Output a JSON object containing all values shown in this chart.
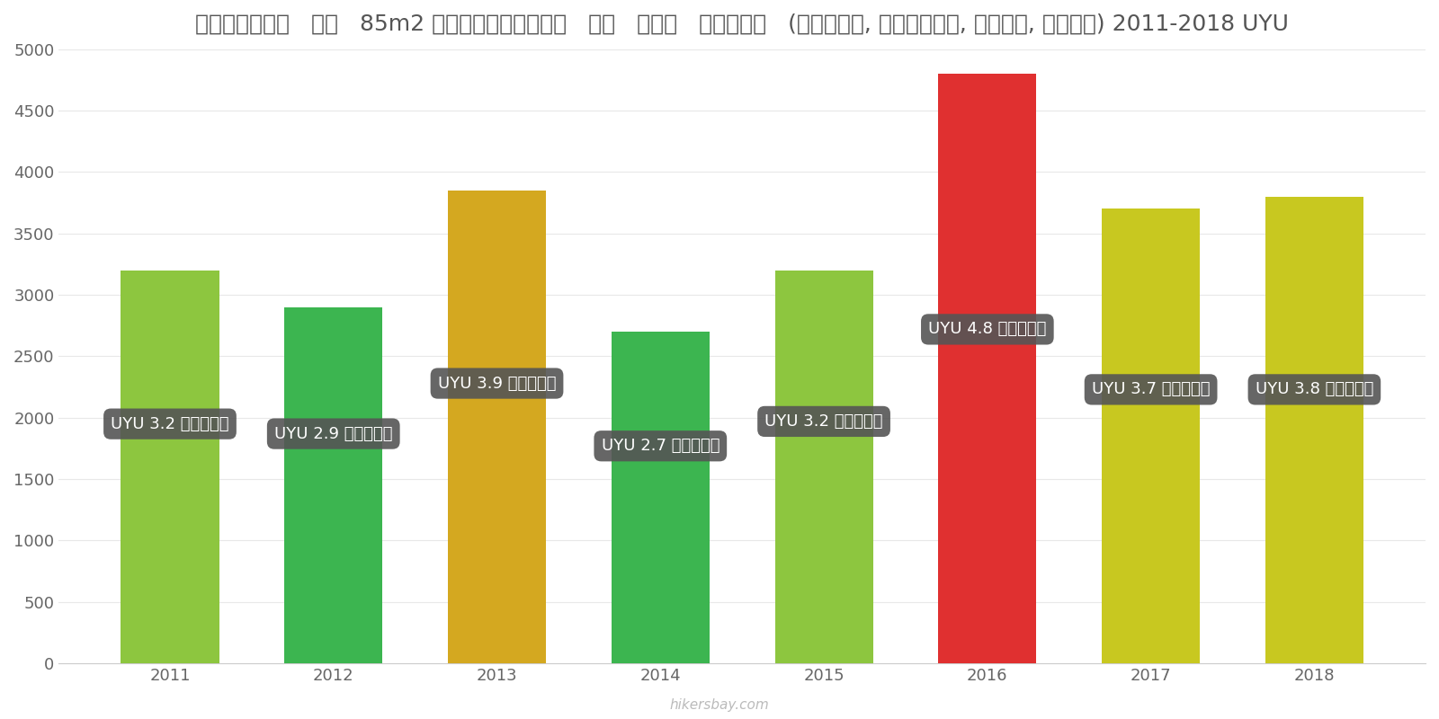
{
  "years": [
    2011,
    2012,
    2013,
    2014,
    2015,
    2016,
    2017,
    2018
  ],
  "values": [
    3200,
    2900,
    3850,
    2700,
    3200,
    4800,
    3700,
    3800
  ],
  "bar_colors": [
    "#8DC63F",
    "#3CB550",
    "#D4A820",
    "#3CB550",
    "#8DC63F",
    "#E03030",
    "#C8C820",
    "#C8C820"
  ],
  "labels": [
    "UYU 3.2 हज़ार",
    "UYU 2.9 हज़ार",
    "UYU 3.9 हज़ार",
    "UYU 2.7 हज़ार",
    "UYU 3.2 हज़ार",
    "UYU 4.8 हज़ार",
    "UYU 3.7 हज़ार",
    "UYU 3.8 हज़ार"
  ],
  "title": "उरुग्वे   एक   85m2 अपार्टमेंट   के   लिए   शुल्क   (बिजली, हीटिंग, पानी, कचरा) 2011-2018 UYU",
  "ylim": [
    0,
    5000
  ],
  "yticks": [
    0,
    500,
    1000,
    1500,
    2000,
    2500,
    3000,
    3500,
    4000,
    4500,
    5000
  ],
  "label_box_color": "#555555",
  "label_text_color": "#ffffff",
  "background_color": "#ffffff",
  "watermark": "hikersbay.com",
  "label_y_positions": [
    1950,
    1870,
    2280,
    1770,
    1970,
    2720,
    2230,
    2230
  ]
}
